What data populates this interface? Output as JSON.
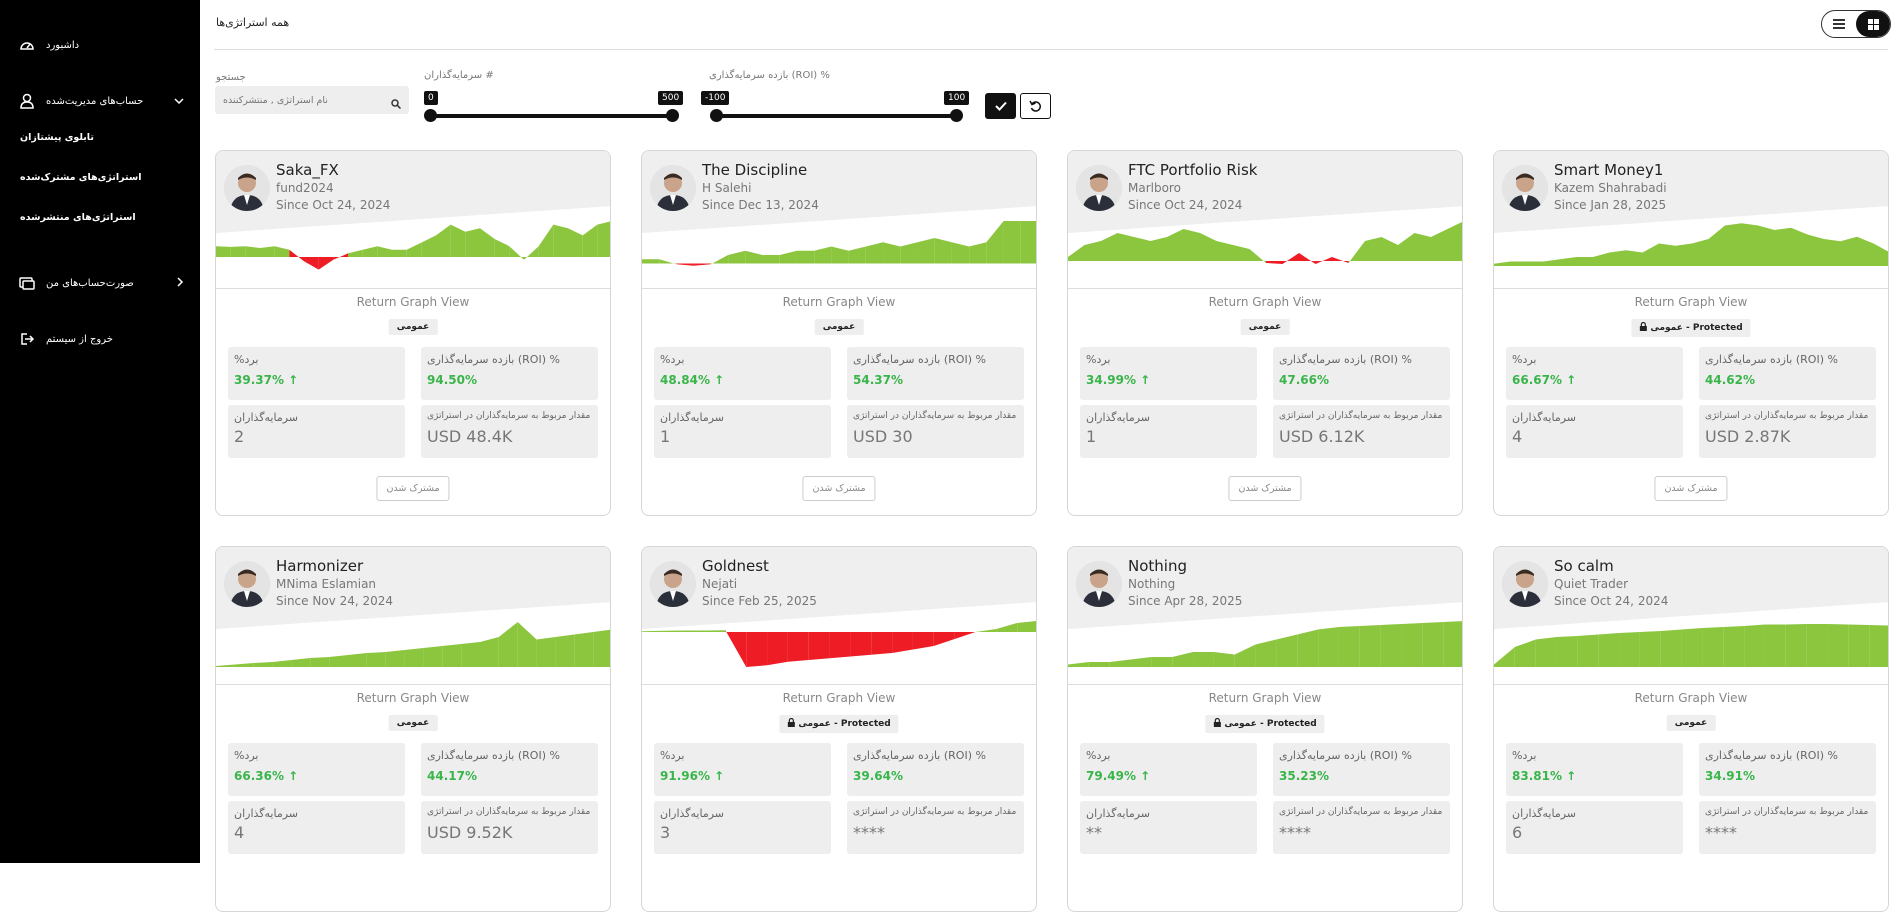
{
  "sidebar": {
    "items": [
      {
        "label": "داشبورد",
        "icon": "dashboard-icon"
      },
      {
        "label": "حساب‌های مدیریت‌شده",
        "icon": "user-icon"
      },
      {
        "label": "صورت‌حساب‌های من",
        "icon": "billing-icon"
      },
      {
        "label": "خروج از سیستم",
        "icon": "logout-icon"
      }
    ],
    "subitems": [
      "تابلوی پیشتازان",
      "استراتژی‌های مشترک‌شده",
      "استراتژی‌های منتشرشده"
    ]
  },
  "header": {
    "title": "همه استراتژی‌ها"
  },
  "filters": {
    "search_label": "جستجو",
    "search_placeholder": "نام استراتژی , منتشرکننده",
    "investors_label": "سرمایه‌گذاران #",
    "investors_min": "0",
    "investors_max": "500",
    "roi_label": "بازده سرمایه‌گذاری (ROI) %",
    "roi_min": "-100",
    "roi_max": "100"
  },
  "card_labels": {
    "graph_view": "Return Graph View",
    "win_label": "%برد",
    "roi_label": "بازده سرمایه‌گذاری (ROI) %",
    "investors_label": "سرمایه‌گذاران",
    "amount_label": "مقدار مربوط به سرمایه‌گذاران در استراتژی",
    "subscribe": "مشترک شدن"
  },
  "cards": [
    {
      "name": "Saka_FX",
      "author": "fund2024",
      "since": "Since Oct 24, 2024",
      "badge": "عمومی",
      "protected": false,
      "win": "39.37%",
      "roi": "94.50%",
      "investors": "2",
      "amount": "USD 48.4K"
    },
    {
      "name": "The Discipline",
      "author": "H Salehi",
      "since": "Since Dec 13, 2024",
      "badge": "عمومی",
      "protected": false,
      "win": "48.84%",
      "roi": "54.37%",
      "investors": "1",
      "amount": "USD 30"
    },
    {
      "name": "FTC Portfolio Risk",
      "author": "Marlboro",
      "since": "Since Oct 24, 2024",
      "badge": "عمومی",
      "protected": false,
      "win": "34.99%",
      "roi": "47.66%",
      "investors": "1",
      "amount": "USD 6.12K"
    },
    {
      "name": "Smart Money1",
      "author": "Kazem Shahrabadi",
      "since": "Since Jan 28, 2025",
      "badge": "عمومی - Protected",
      "protected": true,
      "win": "66.67%",
      "roi": "44.62%",
      "investors": "4",
      "amount": "USD 2.87K"
    },
    {
      "name": "Harmonizer",
      "author": "MNima Eslamian",
      "since": "Since Nov 24, 2024",
      "badge": "عمومی",
      "protected": false,
      "win": "66.36%",
      "roi": "44.17%",
      "investors": "4",
      "amount": "USD 9.52K"
    },
    {
      "name": "Goldnest",
      "author": "Nejati",
      "since": "Since Feb 25, 2025",
      "badge": "عمومی - Protected",
      "protected": true,
      "win": "91.96%",
      "roi": "39.64%",
      "investors": "3",
      "amount": "****"
    },
    {
      "name": "Nothing",
      "author": "Nothing",
      "since": "Since Apr 28, 2025",
      "badge": "عمومی - Protected",
      "protected": true,
      "win": "79.49%",
      "roi": "35.23%",
      "investors": "**",
      "amount": "****"
    },
    {
      "name": "So calm",
      "author": "Quiet Trader",
      "since": "Since Oct 24, 2024",
      "badge": "عمومی",
      "protected": false,
      "win": "83.81%",
      "roi": "34.91%",
      "investors": "6",
      "amount": "****"
    }
  ],
  "colors": {
    "positive": "#8cc63f",
    "negative": "#ee1c25",
    "win_text": "#39b54a"
  }
}
